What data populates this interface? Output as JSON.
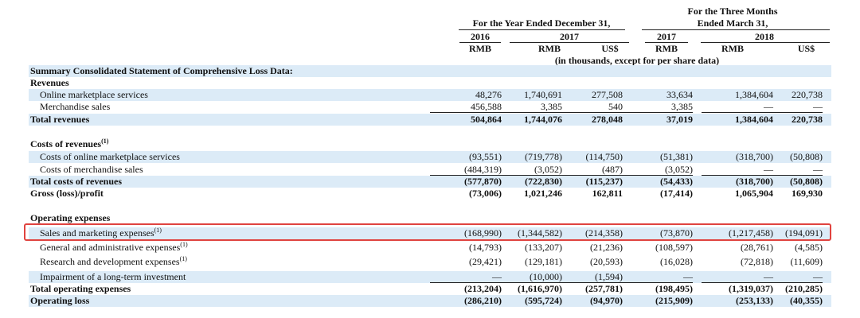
{
  "header": {
    "year_group": "For the Year Ended December 31,",
    "three_months_group_line1": "For the Three Months",
    "three_months_group_line2": "Ended March 31,",
    "years": [
      "2016",
      "2017",
      "2017",
      "2018"
    ],
    "currencies": [
      "RMB",
      "RMB",
      "US$",
      "RMB",
      "RMB",
      "US$"
    ],
    "units_note": "(in thousands, except for per share data)"
  },
  "rows": [
    {
      "label": "Summary Consolidated Statement of Comprehensive Loss Data:",
      "values": [
        "",
        "",
        "",
        "",
        "",
        ""
      ]
    },
    {
      "label": "Revenues",
      "values": [
        "",
        "",
        "",
        "",
        "",
        ""
      ]
    },
    {
      "label": "Online marketplace services",
      "values": [
        "48,276",
        "1,740,691",
        "277,508",
        "33,634",
        "1,384,604",
        "220,738"
      ]
    },
    {
      "label": "Merchandise sales",
      "values": [
        "456,588",
        "3,385",
        "540",
        "3,385",
        "—",
        "—"
      ]
    },
    {
      "label": "Total revenues",
      "values": [
        "504,864",
        "1,744,076",
        "278,048",
        "37,019",
        "1,384,604",
        "220,738"
      ]
    },
    {
      "label": "",
      "values": [
        "",
        "",
        "",
        "",
        "",
        ""
      ]
    },
    {
      "label": "Costs of revenues",
      "sup": "(1)",
      "values": [
        "",
        "",
        "",
        "",
        "",
        ""
      ]
    },
    {
      "label": "Costs of online marketplace services",
      "values": [
        "(93,551)",
        "(719,778)",
        "(114,750)",
        "(51,381)",
        "(318,700)",
        "(50,808)"
      ]
    },
    {
      "label": "Costs of merchandise sales",
      "values": [
        "(484,319)",
        "(3,052)",
        "(487)",
        "(3,052)",
        "—",
        "—"
      ]
    },
    {
      "label": "Total costs of revenues",
      "values": [
        "(577,870)",
        "(722,830)",
        "(115,237)",
        "(54,433)",
        "(318,700)",
        "(50,808)"
      ]
    },
    {
      "label": "Gross (loss)/profit",
      "values": [
        "(73,006)",
        "1,021,246",
        "162,811",
        "(17,414)",
        "1,065,904",
        "169,930"
      ]
    },
    {
      "label": "",
      "values": [
        "",
        "",
        "",
        "",
        "",
        ""
      ]
    },
    {
      "label": "Operating expenses",
      "values": [
        "",
        "",
        "",
        "",
        "",
        ""
      ]
    },
    {
      "label": "Sales and marketing expenses",
      "sup": "(1)",
      "values": [
        "(168,990)",
        "(1,344,582)",
        "(214,358)",
        "(73,870)",
        "(1,217,458)",
        "(194,091)"
      ]
    },
    {
      "label": "General and administrative expenses",
      "sup": "(1)",
      "values": [
        "(14,793)",
        "(133,207)",
        "(21,236)",
        "(108,597)",
        "(28,761)",
        "(4,585)"
      ]
    },
    {
      "label": "Research and development expenses",
      "sup": "(1)",
      "values": [
        "(29,421)",
        "(129,181)",
        "(20,593)",
        "(16,028)",
        "(72,818)",
        "(11,609)"
      ]
    },
    {
      "label": "Impairment of a long-term investment",
      "values": [
        "—",
        "(10,000)",
        "(1,594)",
        "—",
        "—",
        "—"
      ]
    },
    {
      "label": "Total operating expenses",
      "values": [
        "(213,204)",
        "(1,616,970)",
        "(257,781)",
        "(198,495)",
        "(1,319,037)",
        "(210,285)"
      ]
    },
    {
      "label": "Operating loss",
      "values": [
        "(286,210)",
        "(595,724)",
        "(94,970)",
        "(215,909)",
        "(253,133)",
        "(40,355)"
      ]
    }
  ],
  "colors": {
    "row_shade": "#dcebf7",
    "highlight": "#e0433f"
  }
}
